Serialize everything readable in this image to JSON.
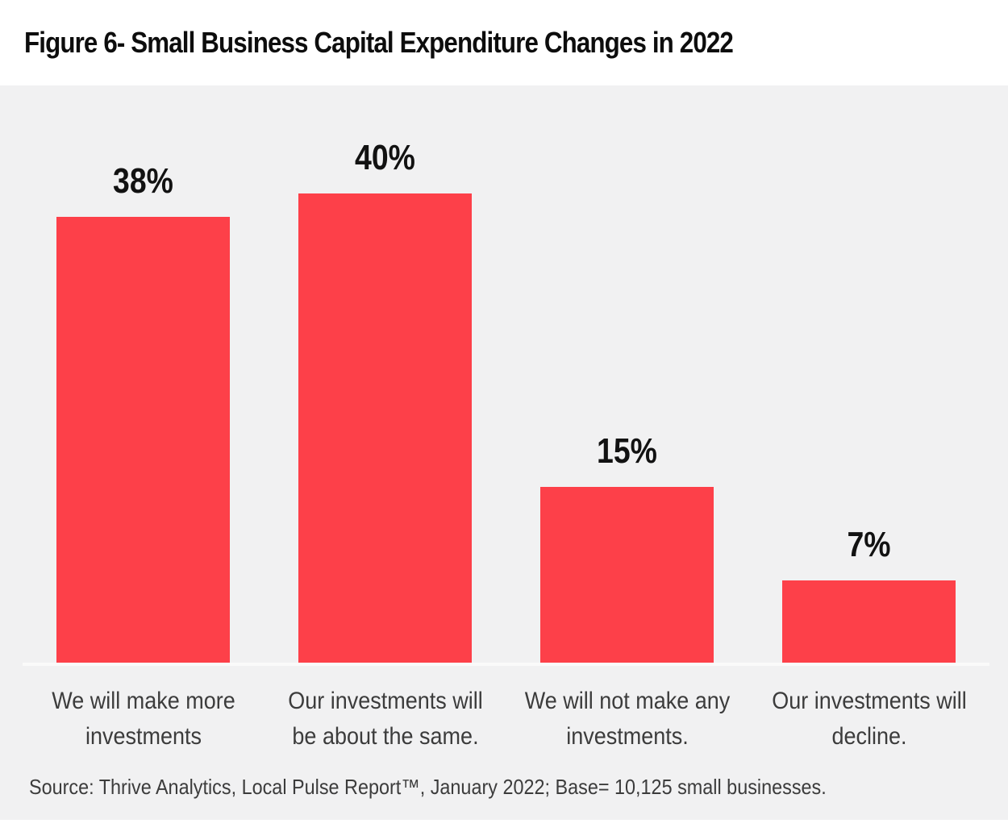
{
  "figure_title": "Figure 6- Small Business Capital Expenditure Changes in 2022",
  "source_note": "Source: Thrive Analytics, Local Pulse Report™, January 2022; Base= 10,125 small businesses.",
  "colors": {
    "page_bg": "#ffffff",
    "panel_bg": "#f1f1f2",
    "bar": "#fd4049",
    "baseline": "#fafafa",
    "title_text": "#0d0d0d",
    "value_text": "#121212",
    "body_text": "#3c3c3c"
  },
  "chart_data": {
    "type": "bar",
    "title": "Figure 6- Small Business Capital Expenditure Changes in 2022",
    "categories": [
      "We will make more investments",
      "Our investments will be about the same.",
      "We will not make any investments.",
      "Our investments will decline."
    ],
    "categories_wrapped": [
      "We will make more\ninvestments",
      "Our investments will\nbe about the same.",
      "We will not make any\ninvestments.",
      "Our investments will\ndecline."
    ],
    "values": [
      38,
      40,
      15,
      7
    ],
    "value_labels": [
      "38%",
      "40%",
      "15%",
      "7%"
    ],
    "xlabel": "",
    "ylabel": "",
    "ylim": [
      0,
      49
    ],
    "grid": false,
    "legend": "none",
    "bar_color": "#fd4049",
    "background": "#f1f1f2",
    "annotation": "Source: Thrive Analytics, Local Pulse Report™, January 2022; Base= 10,125 small businesses."
  }
}
